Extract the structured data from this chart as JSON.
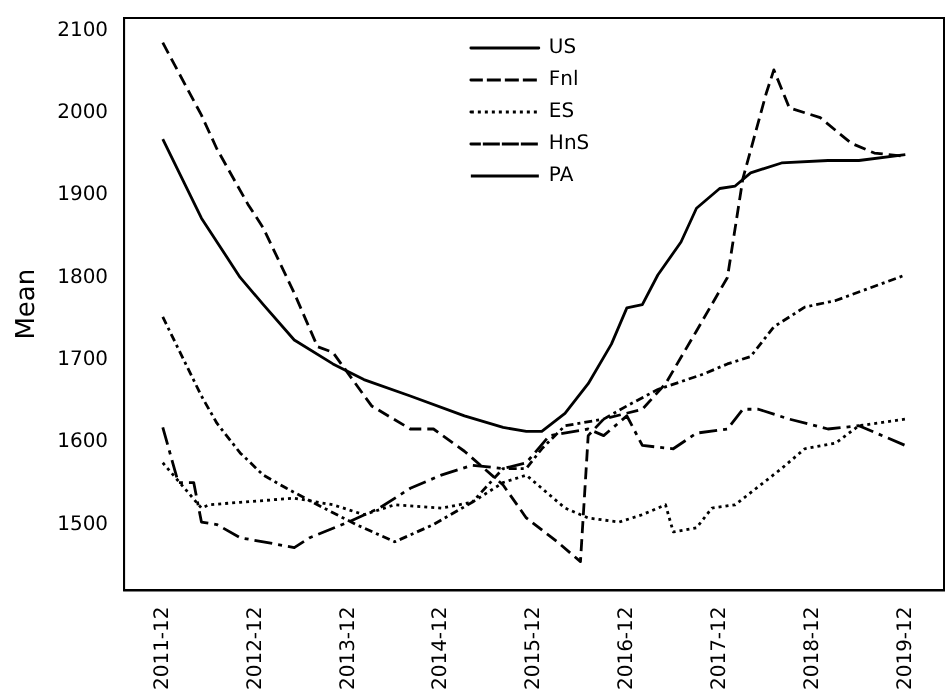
{
  "chart_data": {
    "type": "line",
    "ylabel": "Mean",
    "xlim": [
      "2011-07",
      "2020-05"
    ],
    "ylim": [
      1420,
      2115
    ],
    "xticks": [
      "2011-12",
      "2012-12",
      "2013-12",
      "2014-12",
      "2015-12",
      "2016-12",
      "2017-12",
      "2018-12",
      "2019-12"
    ],
    "yticks": [
      1500,
      1600,
      1700,
      1800,
      1900,
      2000,
      2100
    ],
    "grid": false,
    "legend": "top",
    "marker": "none",
    "series": [
      {
        "name": "US",
        "color": "#000000",
        "line_style": "solid",
        "x": [
          "2011-12",
          "2012-05",
          "2012-10",
          "2013-01",
          "2013-05",
          "2013-10",
          "2014-02",
          "2014-08",
          "2015-03",
          "2015-08",
          "2015-11",
          "2016-01",
          "2016-04",
          "2016-07",
          "2016-10",
          "2016-12",
          "2017-02",
          "2017-04",
          "2017-07",
          "2017-09",
          "2017-12",
          "2018-02",
          "2018-04",
          "2018-08",
          "2019-02",
          "2019-06",
          "2019-12"
        ],
        "values": [
          1968,
          1872,
          1800,
          1767,
          1724,
          1695,
          1676,
          1656,
          1632,
          1618,
          1613,
          1613,
          1635,
          1671,
          1719,
          1763,
          1767,
          1803,
          1843,
          1884,
          1908,
          1911,
          1927,
          1939,
          1942,
          1942,
          1949
        ]
      },
      {
        "name": "Fnl",
        "color": "#000000",
        "line_style": "dashed",
        "x": [
          "2011-12",
          "2012-05",
          "2012-07",
          "2012-11",
          "2013-01",
          "2013-05",
          "2013-08",
          "2013-10",
          "2014-03",
          "2014-08",
          "2014-11",
          "2015-03",
          "2015-08",
          "2015-11",
          "2016-03",
          "2016-06",
          "2016-07",
          "2016-09",
          "2017-02",
          "2017-05",
          "2017-09",
          "2018-01",
          "2018-03",
          "2018-06",
          "2018-07",
          "2018-09",
          "2019-01",
          "2019-05",
          "2019-08",
          "2019-12"
        ],
        "values": [
          2085,
          1997,
          1956,
          1889,
          1860,
          1781,
          1716,
          1709,
          1644,
          1616,
          1616,
          1589,
          1548,
          1508,
          1479,
          1455,
          1608,
          1628,
          1640,
          1671,
          1735,
          1800,
          1920,
          2023,
          2052,
          2006,
          1994,
          1963,
          1951,
          1947
        ]
      },
      {
        "name": "ES",
        "color": "#000000",
        "line_style": "dotted",
        "x": [
          "2011-12",
          "2012-05",
          "2012-06",
          "2012-10",
          "2013-05",
          "2013-10",
          "2014-02",
          "2014-06",
          "2014-12",
          "2015-04",
          "2015-08",
          "2015-11",
          "2016-01",
          "2016-04",
          "2016-07",
          "2016-11",
          "2017-02",
          "2017-05",
          "2017-06",
          "2017-09",
          "2017-11",
          "2018-02",
          "2018-08",
          "2018-11",
          "2019-03",
          "2019-06",
          "2019-12"
        ],
        "values": [
          1575,
          1520,
          1524,
          1527,
          1532,
          1524,
          1512,
          1524,
          1520,
          1527,
          1551,
          1560,
          1544,
          1520,
          1508,
          1503,
          1512,
          1524,
          1491,
          1496,
          1520,
          1524,
          1568,
          1592,
          1599,
          1620,
          1628
        ]
      },
      {
        "name": "HnS",
        "color": "#000000",
        "line_style": "dashdot",
        "x": [
          "2011-12",
          "2012-05",
          "2012-07",
          "2012-10",
          "2013-01",
          "2013-04",
          "2013-08",
          "2014-01",
          "2014-06",
          "2014-11",
          "2015-04",
          "2015-08",
          "2015-11",
          "2016-01",
          "2016-04",
          "2016-09",
          "2016-12",
          "2017-04",
          "2017-10",
          "2018-01",
          "2018-04",
          "2018-07",
          "2018-11",
          "2019-03",
          "2019-12"
        ],
        "values": [
          1752,
          1656,
          1623,
          1587,
          1560,
          1544,
          1524,
          1500,
          1479,
          1500,
          1527,
          1568,
          1568,
          1592,
          1620,
          1628,
          1644,
          1664,
          1683,
          1695,
          1704,
          1740,
          1764,
          1772,
          1803
        ]
      },
      {
        "name": "PA",
        "color": "#000000",
        "line_style": "longdashdot",
        "x": [
          "2011-12",
          "2012-02",
          "2012-04",
          "2012-05",
          "2012-07",
          "2012-10",
          "2013-01",
          "2013-05",
          "2013-07",
          "2013-12",
          "2014-04",
          "2014-08",
          "2014-12",
          "2015-04",
          "2015-08",
          "2015-11",
          "2016-02",
          "2016-07",
          "2016-09",
          "2016-12",
          "2017-02",
          "2017-06",
          "2017-09",
          "2018-01",
          "2018-03",
          "2018-05",
          "2018-09",
          "2019-02",
          "2019-06",
          "2019-12"
        ],
        "values": [
          1618,
          1551,
          1551,
          1503,
          1500,
          1484,
          1479,
          1472,
          1484,
          1503,
          1520,
          1544,
          1560,
          1572,
          1568,
          1575,
          1608,
          1616,
          1608,
          1632,
          1596,
          1592,
          1611,
          1616,
          1640,
          1640,
          1628,
          1616,
          1620,
          1596
        ]
      }
    ]
  }
}
